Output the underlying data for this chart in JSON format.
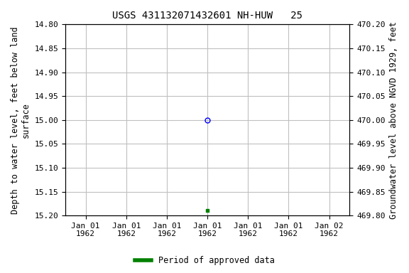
{
  "title": "USGS 431132071432601 NH-HUW   25",
  "ylabel_left": "Depth to water level, feet below land\nsurface",
  "ylabel_right": "Groundwater level above NGVD 1929, feet",
  "ylim_left": [
    15.2,
    14.8
  ],
  "ylim_right": [
    469.8,
    470.2
  ],
  "yticks_left": [
    14.8,
    14.85,
    14.9,
    14.95,
    15.0,
    15.05,
    15.1,
    15.15,
    15.2
  ],
  "yticks_right": [
    469.8,
    469.85,
    469.9,
    469.95,
    470.0,
    470.05,
    470.1,
    470.15,
    470.2
  ],
  "xtick_positions": [
    0,
    1,
    2,
    3,
    4,
    5,
    6
  ],
  "xtick_labels": [
    "Jan 01\n1962",
    "Jan 01\n1962",
    "Jan 01\n1962",
    "Jan 01\n1962",
    "Jan 01\n1962",
    "Jan 01\n1962",
    "Jan 02\n1962"
  ],
  "xlim": [
    -0.5,
    6.5
  ],
  "data_point_open_x": 3,
  "data_point_open_y": 15.0,
  "data_point_filled_x": 3,
  "data_point_filled_y": 15.19,
  "open_color": "#0000ff",
  "filled_color": "#008000",
  "legend_label": "Period of approved data",
  "legend_color": "#008000",
  "background_color": "#ffffff",
  "grid_color": "#c0c0c0",
  "title_fontsize": 10,
  "label_fontsize": 8.5,
  "tick_fontsize": 8
}
